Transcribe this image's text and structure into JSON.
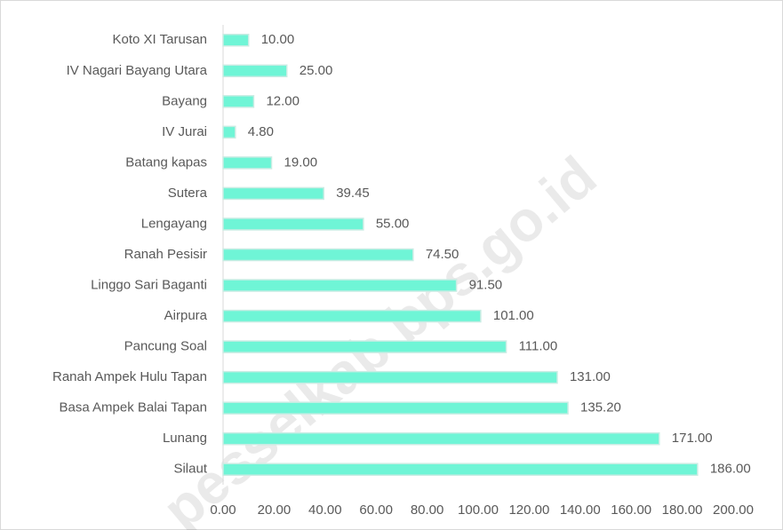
{
  "chart_data": {
    "type": "bar",
    "orientation": "horizontal",
    "categories": [
      "Koto XI Tarusan",
      "IV Nagari Bayang Utara",
      "Bayang",
      "IV Jurai",
      "Batang kapas",
      "Sutera",
      "Lengayang",
      "Ranah Pesisir",
      "Linggo Sari Baganti",
      "Airpura",
      "Pancung Soal",
      "Ranah Ampek Hulu Tapan",
      "Basa Ampek Balai Tapan",
      "Lunang",
      "Silaut"
    ],
    "values": [
      10,
      25,
      12,
      4.8,
      19,
      39.45,
      55,
      74.5,
      91.5,
      101,
      111,
      131,
      135.2,
      171,
      186
    ],
    "value_labels": [
      "10.00",
      "25.00",
      "12.00",
      "4.80",
      "19.00",
      "39.45",
      "55.00",
      "74.50",
      "91.50",
      "101.00",
      "111.00",
      "131.00",
      "135.20",
      "171.00",
      "186.00"
    ],
    "color": "#6ff5d6",
    "xlim": [
      0,
      200
    ],
    "xticks": [
      {
        "value": 0,
        "label": "0.00"
      },
      {
        "value": 20,
        "label": "20.00"
      },
      {
        "value": 40,
        "label": "40.00"
      },
      {
        "value": 60,
        "label": "60.00"
      },
      {
        "value": 80,
        "label": "80.00"
      },
      {
        "value": 100,
        "label": "100.00"
      },
      {
        "value": 120,
        "label": "120.00"
      },
      {
        "value": 140,
        "label": "140.00"
      },
      {
        "value": 160,
        "label": "160.00"
      },
      {
        "value": 180,
        "label": "180.00"
      },
      {
        "value": 200,
        "label": "200.00"
      }
    ],
    "watermark": "pesselkab.bps.go.id"
  }
}
